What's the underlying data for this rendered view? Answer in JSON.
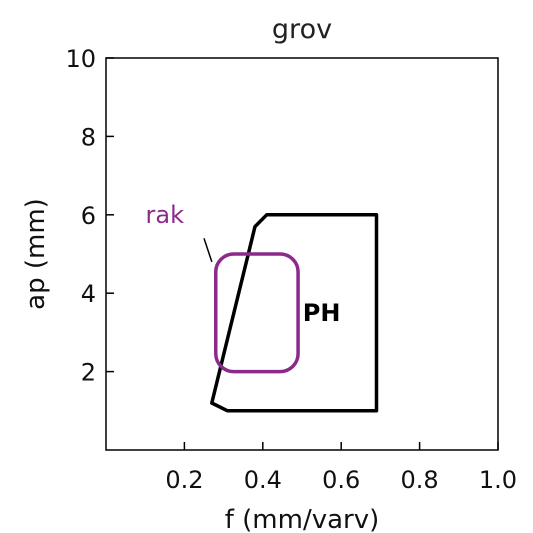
{
  "chart_data": {
    "type": "region",
    "title": "grov",
    "xlabel": "f (mm/varv)",
    "ylabel": "ap (mm)",
    "xlim": [
      0,
      1.0
    ],
    "ylim": [
      0,
      10
    ],
    "x_ticks": [
      {
        "value": 0.2,
        "label": "0.2"
      },
      {
        "value": 0.4,
        "label": "0.4"
      },
      {
        "value": 0.6,
        "label": "0.6"
      },
      {
        "value": 0.8,
        "label": "0.8"
      },
      {
        "value": 1.0,
        "label": "1.0"
      }
    ],
    "y_ticks": [
      {
        "value": 2,
        "label": "2"
      },
      {
        "value": 4,
        "label": "4"
      },
      {
        "value": 6,
        "label": "6"
      },
      {
        "value": 8,
        "label": "8"
      },
      {
        "value": 10,
        "label": "10"
      }
    ],
    "regions": [
      {
        "name": "PH",
        "color": "#000000",
        "outline": [
          [
            0.41,
            6.0
          ],
          [
            0.69,
            6.0
          ],
          [
            0.69,
            1.0
          ],
          [
            0.31,
            1.0
          ],
          [
            0.27,
            1.2
          ],
          [
            0.38,
            5.7
          ]
        ],
        "label": "PH",
        "label_at": [
          0.55,
          3.5
        ]
      },
      {
        "name": "rak",
        "color": "#8c2a8c",
        "outline": [
          [
            0.28,
            5.0
          ],
          [
            0.49,
            5.0
          ],
          [
            0.49,
            2.0
          ],
          [
            0.28,
            2.0
          ]
        ],
        "label": "rak",
        "label_at": [
          0.15,
          6.0
        ],
        "callout_from": [
          0.25,
          5.4
        ],
        "callout_to": [
          0.27,
          4.8
        ]
      }
    ],
    "grid": false,
    "legend": "none"
  }
}
